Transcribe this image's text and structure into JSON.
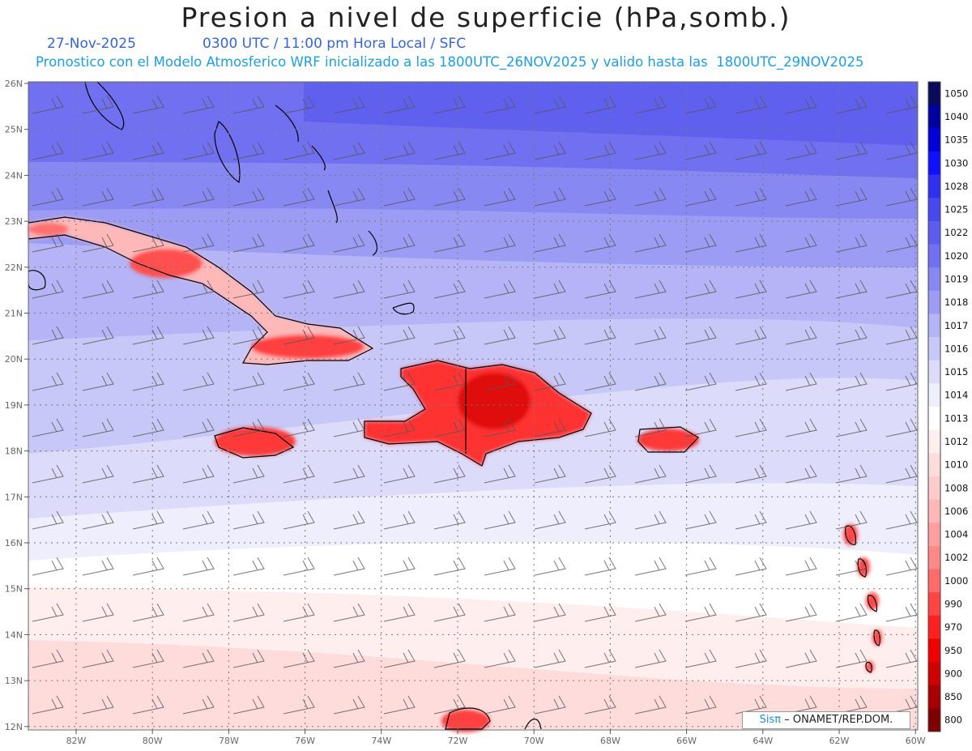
{
  "header": {
    "title": "Presion a nivel de superficie (hPa,somb.)",
    "date": "27-Nov-2025",
    "time_line": "0300 UTC / 11:00 pm Hora Local / SFC",
    "forecast_line": "Pronostico con el Modelo Atmosferico WRF inicializado a las 1800UTC_26NOV2025 y valido hasta las  1800UTC_29NOV2025"
  },
  "map": {
    "lon_labels": [
      "82W",
      "80W",
      "78W",
      "76W",
      "74W",
      "72W",
      "70W",
      "68W",
      "66W",
      "64W",
      "62W",
      "60W"
    ],
    "lat_labels": [
      "26N",
      "25N",
      "24N",
      "23N",
      "22N",
      "21N",
      "20N",
      "19N",
      "18N",
      "17N",
      "16N",
      "15N",
      "14N",
      "13N",
      "12N"
    ]
  },
  "colorbar": {
    "labels": [
      "1050",
      "1040",
      "1035",
      "1030",
      "1028",
      "1025",
      "1022",
      "1020",
      "1019",
      "1018",
      "1017",
      "1016",
      "1015",
      "1014",
      "1013",
      "1012",
      "1010",
      "1008",
      "1006",
      "1004",
      "1002",
      "1000",
      "990",
      "970",
      "950",
      "900",
      "850",
      "800"
    ],
    "colors": [
      "#0a0a5a",
      "#0000a0",
      "#0000d8",
      "#1010ff",
      "#3030f0",
      "#4848ee",
      "#5c5cee",
      "#7070f0",
      "#8888f2",
      "#9c9cf4",
      "#b4b4f6",
      "#c8c8f8",
      "#dcdcfa",
      "#eeeefc",
      "#ffffff",
      "#ffeeee",
      "#ffdcdc",
      "#ffcccc",
      "#ffb8b8",
      "#ffa0a0",
      "#ff8888",
      "#ff6a6a",
      "#ff4444",
      "#ff2020",
      "#f00000",
      "#d00000",
      "#a80000",
      "#800000"
    ]
  },
  "credit": {
    "brand": "Sisπ",
    "text": "– ONAMET/REP.DOM."
  }
}
